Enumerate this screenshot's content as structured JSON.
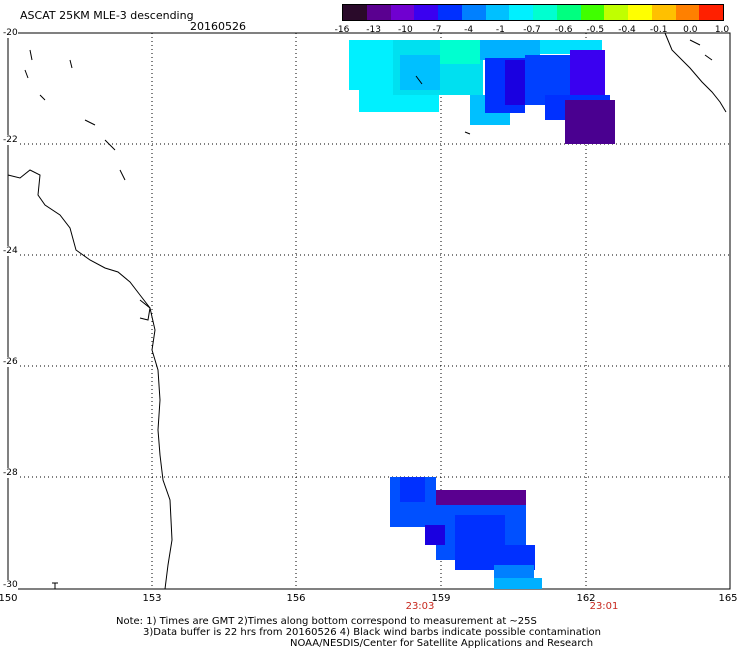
{
  "header": {
    "title": "ASCAT 25KM MLE-3 descending",
    "date": "20160526"
  },
  "colorbar": {
    "colors": [
      "#2a0a2a",
      "#5a0090",
      "#7000d0",
      "#3a00f0",
      "#0030ff",
      "#0080ff",
      "#00c0ff",
      "#00f0ff",
      "#00ffd0",
      "#00ff80",
      "#40ff00",
      "#c0ff00",
      "#ffff00",
      "#ffc000",
      "#ff8000",
      "#ff2000"
    ],
    "tick_labels": [
      "-16",
      "-13",
      "-10",
      "-7",
      "-4",
      "-1",
      "-0.7",
      "-0.6",
      "-0.5",
      "-0.4",
      "-0.1",
      "0.0",
      "1.0"
    ]
  },
  "axes": {
    "lon_labels": [
      "150",
      "153",
      "156",
      "159",
      "162",
      "165"
    ],
    "lat_labels": [
      "-20",
      "-22",
      "-24",
      "-26",
      "-28",
      "-30"
    ]
  },
  "time_labels": [
    "23:03",
    "23:01"
  ],
  "notes": {
    "line1": "Note: 1) Times are GMT 2)Times along bottom correspond to measurement at ~25S",
    "line2": "3)Data buffer is 22 hrs from 20160526 4) Black wind barbs indicate possible contamination",
    "line3": "NOAA/NESDIS/Center for Satellite Applications and Research"
  }
}
